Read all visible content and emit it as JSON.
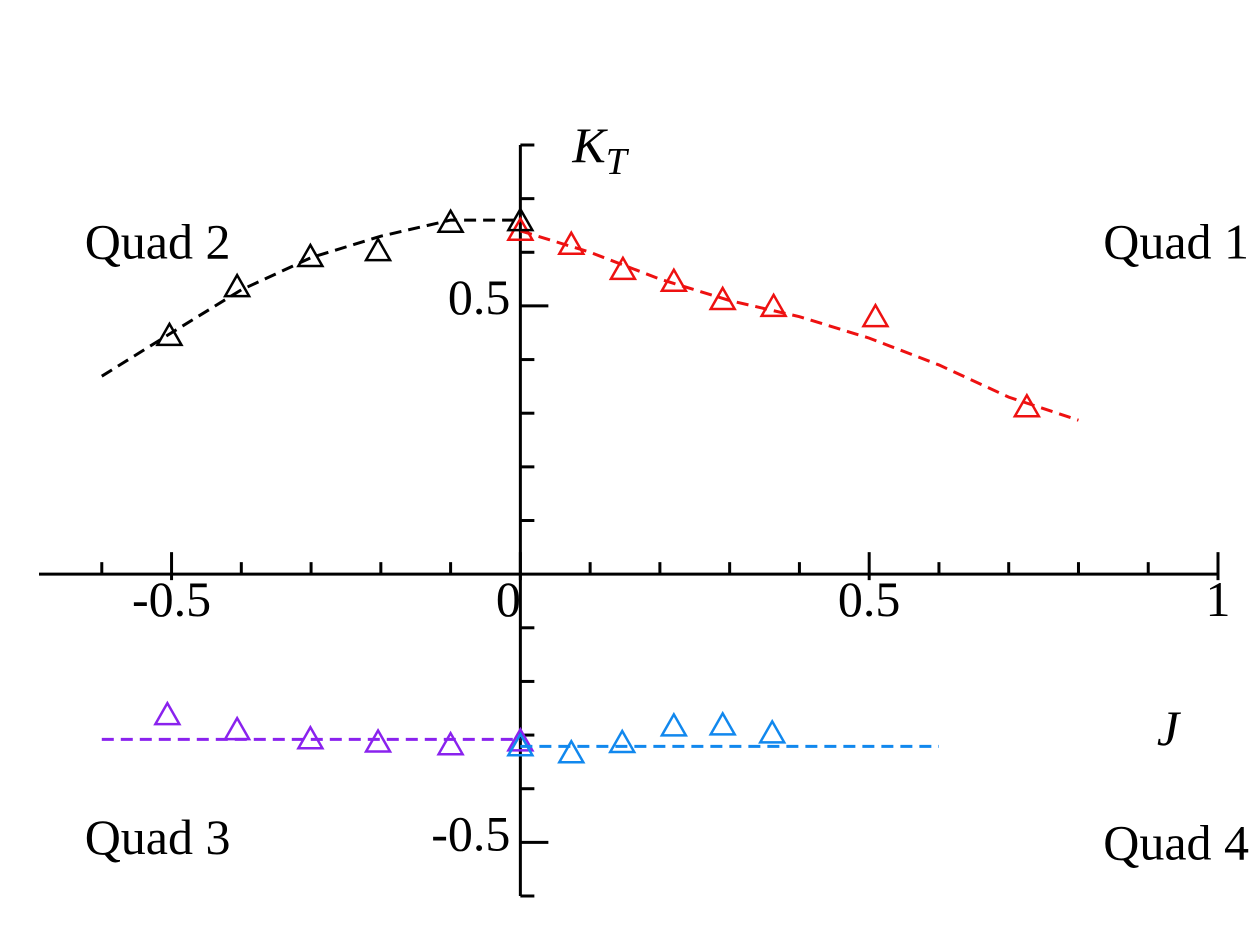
{
  "chart_data": {
    "type": "scatter",
    "xlabel": "J",
    "ylabel": "K",
    "ylabel_subscript": "T",
    "xlim": [
      -0.69,
      1
    ],
    "ylim": [
      -0.6,
      0.8
    ],
    "xticks": [
      -0.5,
      0,
      0.5,
      1
    ],
    "yticks": [
      -0.5,
      0.5
    ],
    "xminorticks": [
      -0.6,
      -0.4,
      -0.3,
      -0.2,
      -0.1,
      0.1,
      0.2,
      0.3,
      0.4,
      0.6,
      0.7,
      0.8,
      0.9
    ],
    "yminorticks": [
      -0.6,
      -0.4,
      -0.3,
      -0.2,
      -0.1,
      0.1,
      0.2,
      0.3,
      0.4,
      0.6,
      0.7,
      0.8
    ],
    "annotations": [
      {
        "text": "Quad 1",
        "x": 0.94,
        "y": 0.62
      },
      {
        "text": "Quad 2",
        "x": -0.52,
        "y": 0.62
      },
      {
        "text": "Quad 3",
        "x": -0.52,
        "y": -0.49
      },
      {
        "text": "Quad 4",
        "x": 0.94,
        "y": -0.5
      }
    ],
    "series": [
      {
        "color": "#ee1111",
        "x": [
          0,
          0.073,
          0.147,
          0.22,
          0.29,
          0.363,
          0.509,
          0.726
        ],
        "y": [
          0.642,
          0.616,
          0.569,
          0.547,
          0.513,
          0.5,
          0.481,
          0.313
        ],
        "line_x": [
          0,
          0.1,
          0.2,
          0.3,
          0.4,
          0.5,
          0.6,
          0.7,
          0.8
        ],
        "line_y": [
          0.64,
          0.6,
          0.55,
          0.51,
          0.48,
          0.44,
          0.39,
          0.33,
          0.287
        ]
      },
      {
        "color": "#000000",
        "x": [
          -0.503,
          -0.406,
          -0.301,
          -0.204,
          -0.1,
          0
        ],
        "y": [
          0.446,
          0.537,
          0.593,
          0.604,
          0.657,
          0.66
        ],
        "line_x": [
          -0.6,
          -0.5,
          -0.4,
          -0.3,
          -0.2,
          -0.1,
          0
        ],
        "line_y": [
          0.369,
          0.45,
          0.53,
          0.59,
          0.63,
          0.66,
          0.66
        ]
      },
      {
        "color": "#8a22ee",
        "x": [
          -0.506,
          -0.406,
          -0.301,
          -0.204,
          -0.1,
          0
        ],
        "y": [
          -0.261,
          -0.289,
          -0.306,
          -0.312,
          -0.317,
          -0.31
        ],
        "line_x": [
          -0.6,
          0
        ],
        "line_y": [
          -0.308,
          -0.308
        ]
      },
      {
        "color": "#1188ee",
        "x": [
          0,
          0.073,
          0.146,
          0.22,
          0.29,
          0.361
        ],
        "y": [
          -0.319,
          -0.332,
          -0.313,
          -0.282,
          -0.28,
          -0.295
        ],
        "line_x": [
          0,
          0.6
        ],
        "line_y": [
          -0.321,
          -0.321
        ]
      }
    ]
  }
}
